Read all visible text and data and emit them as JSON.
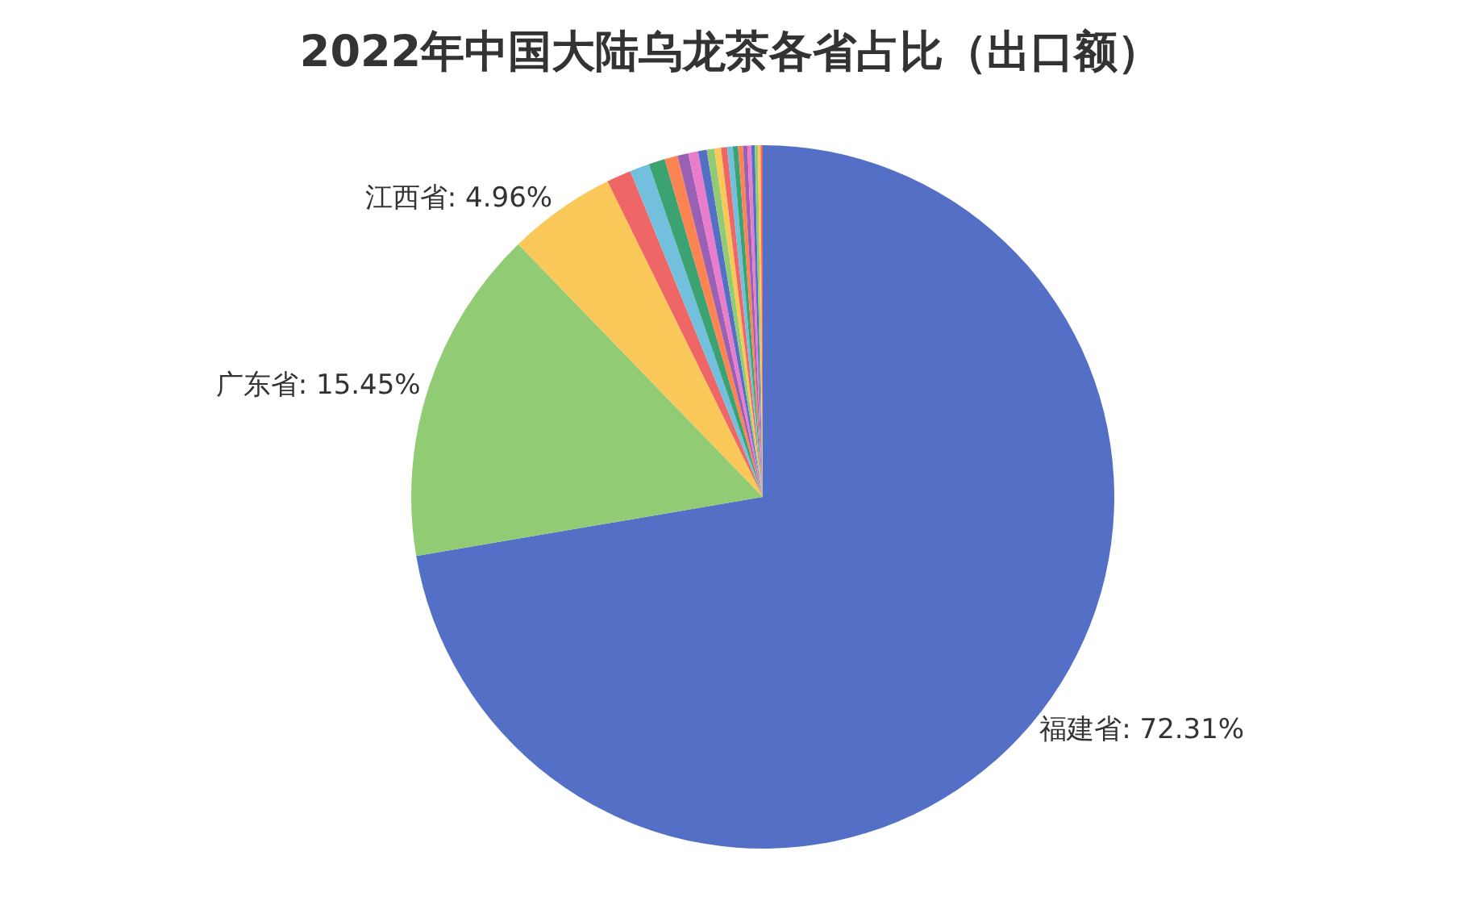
{
  "chart_data": {
    "type": "pie",
    "title": "2022年中国大陆乌龙茶各省占比（出口额）",
    "categories": [
      "福建省",
      "广东省",
      "江西省",
      null,
      null,
      null,
      null,
      null,
      null,
      null,
      null,
      null,
      null,
      null,
      null,
      null,
      null,
      null,
      null,
      null,
      null,
      null
    ],
    "values": [
      72.31,
      15.45,
      4.96,
      1.13,
      0.9,
      0.75,
      0.6,
      0.5,
      0.45,
      0.4,
      0.35,
      0.3,
      0.28,
      0.26,
      0.24,
      0.22,
      0.2,
      0.18,
      0.16,
      0.14,
      0.12,
      0.1
    ],
    "value_labels": [
      "72.31%",
      "15.45%",
      "4.96%",
      null,
      null,
      null,
      null,
      null,
      null,
      null,
      null,
      null,
      null,
      null,
      null,
      null,
      null,
      null,
      null,
      null,
      null,
      null
    ],
    "colors": [
      "#5470c6",
      "#91cc75",
      "#fac858",
      "#ee6666",
      "#73c0de",
      "#3ba272",
      "#fc8452",
      "#9a60b4",
      "#ea7ccc",
      "#5470c6",
      "#91cc75",
      "#fac858",
      "#ee6666",
      "#73c0de",
      "#3ba272",
      "#fc8452",
      "#9a60b4",
      "#ea7ccc",
      "#5470c6",
      "#91cc75",
      "#fac858",
      "#ee6666"
    ],
    "legend": false
  }
}
